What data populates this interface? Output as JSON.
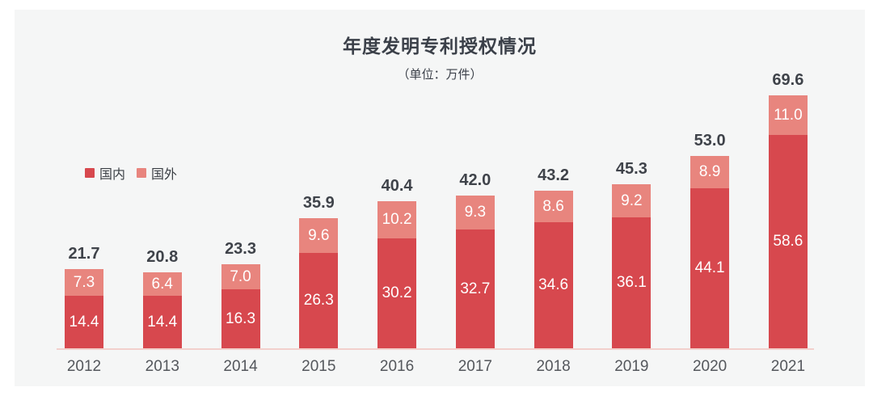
{
  "chart": {
    "title": "年度发明专利授权情况",
    "subtitle": "（单位：万件）"
  },
  "chart_data": {
    "type": "bar",
    "stacked": true,
    "title": "年度发明专利授权情况",
    "subtitle": "（单位：万件）",
    "xlabel": "",
    "ylabel": "",
    "ylim": [
      0,
      70
    ],
    "grid": false,
    "legend_position": "left",
    "categories": [
      "2012",
      "2013",
      "2014",
      "2015",
      "2016",
      "2017",
      "2018",
      "2019",
      "2020",
      "2021"
    ],
    "series": [
      {
        "name": "国内",
        "color": "#d7484e",
        "values": [
          14.4,
          14.4,
          16.3,
          26.3,
          30.2,
          32.7,
          34.6,
          36.1,
          44.1,
          58.6
        ]
      },
      {
        "name": "国外",
        "color": "#e8857e",
        "values": [
          7.3,
          6.4,
          7.0,
          9.6,
          10.2,
          9.3,
          8.6,
          9.2,
          8.9,
          11.0
        ]
      }
    ],
    "totals": [
      21.7,
      20.8,
      23.3,
      35.9,
      40.4,
      42.0,
      43.2,
      45.3,
      53.0,
      69.6
    ]
  },
  "colors": {
    "page_bg": "#ffffff",
    "panel_bg": "#f5f6f6",
    "domestic_bar": "#d7484e",
    "foreign_bar": "#e8857e",
    "axis_line": "#f2d0cc",
    "title_text": "#3b4049",
    "total_text": "#3f434a",
    "year_text": "#54575c",
    "bar_label_text": "#ffffff"
  }
}
